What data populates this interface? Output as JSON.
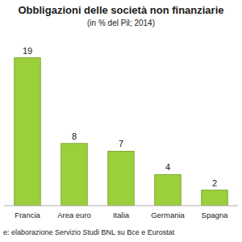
{
  "chart_data": {
    "type": "bar",
    "title": "Obbligazioni delle società non finanziarie",
    "subtitle": "(in % del Pil; 2014)",
    "source": "e: elaborazione Servizio Studi BNL su Bce e Eurostat",
    "categories": [
      "Francia",
      "Area euro",
      "Italia",
      "Germania",
      "Spagna"
    ],
    "values": [
      19,
      8,
      7,
      4,
      2
    ],
    "color": "#9ccf3c",
    "ylim": [
      0,
      20
    ],
    "grid": false,
    "data_labels": true,
    "tick_labels": "x"
  }
}
